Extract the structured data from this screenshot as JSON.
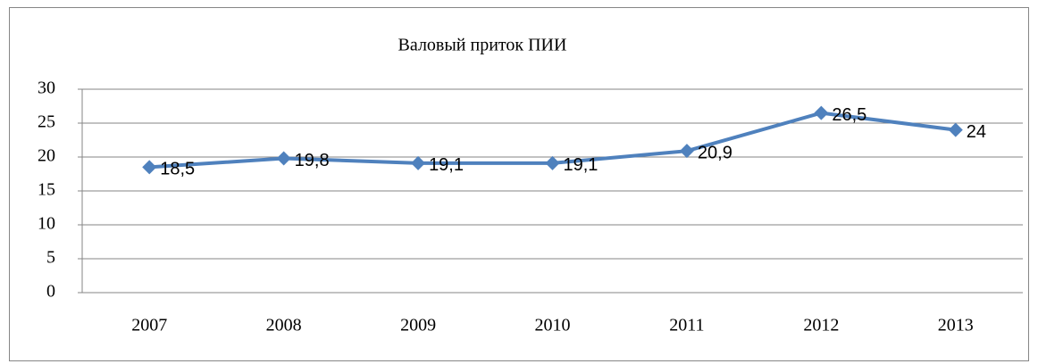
{
  "chart_data": {
    "type": "line",
    "title": "Валовый приток ПИИ",
    "categories": [
      "2007",
      "2008",
      "2009",
      "2010",
      "2011",
      "2012",
      "2013"
    ],
    "series": [
      {
        "color": "#4f81bd",
        "values": [
          18.5,
          19.8,
          19.1,
          19.1,
          20.9,
          26.5,
          24
        ],
        "value_labels": [
          "18,5",
          "19,8",
          "19,1",
          "19,1",
          "20,9",
          "26,5",
          "24"
        ]
      }
    ],
    "ylim": [
      0,
      30
    ],
    "yticks": [
      0,
      5,
      10,
      15,
      20,
      25,
      30
    ],
    "grid": true
  }
}
